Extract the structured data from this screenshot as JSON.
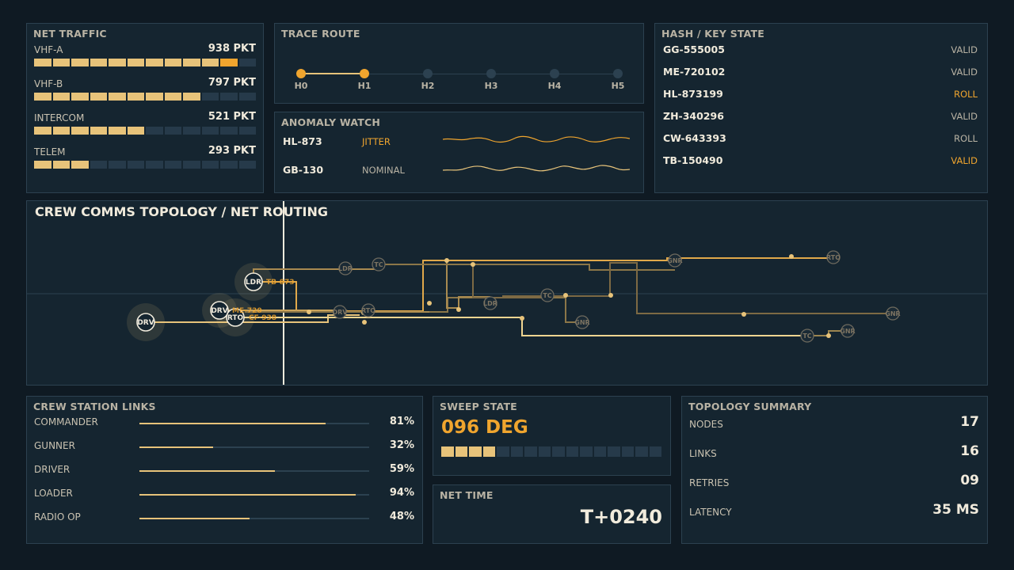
{
  "net_traffic": {
    "title": "NET TRAFFIC",
    "rows": [
      {
        "label": "VHF-A",
        "value": "938 PKT",
        "filled": 11,
        "highlight": 10
      },
      {
        "label": "VHF-B",
        "value": "797 PKT",
        "filled": 9,
        "highlight": -1
      },
      {
        "label": "INTERCOM",
        "value": "521 PKT",
        "filled": 6,
        "highlight": -1
      },
      {
        "label": "TELEM",
        "value": "293 PKT",
        "filled": 3,
        "highlight": -1
      }
    ],
    "segments": 12
  },
  "trace_route": {
    "title": "TRACE ROUTE",
    "hops": [
      "H0",
      "H1",
      "H2",
      "H3",
      "H4",
      "H5"
    ],
    "active_hops": 2
  },
  "anomaly_watch": {
    "title": "ANOMALY WATCH",
    "rows": [
      {
        "id": "HL-873",
        "status": "JITTER",
        "color": "#f0a52e"
      },
      {
        "id": "GB-130",
        "status": "NOMINAL",
        "color": "#b9b3a4"
      }
    ]
  },
  "hash_key": {
    "title": "HASH / KEY STATE",
    "rows": [
      {
        "id": "GG-555005",
        "state": "VALID",
        "color": "#b9b3a4"
      },
      {
        "id": "ME-720102",
        "state": "VALID",
        "color": "#b9b3a4"
      },
      {
        "id": "HL-873199",
        "state": "ROLL",
        "color": "#f0a52e"
      },
      {
        "id": "ZH-340296",
        "state": "VALID",
        "color": "#b9b3a4"
      },
      {
        "id": "CW-643393",
        "state": "ROLL",
        "color": "#b9b3a4"
      },
      {
        "id": "TB-150490",
        "state": "VALID",
        "color": "#f0a52e"
      }
    ]
  },
  "topology": {
    "title": "CREW COMMS TOPOLOGY / NET ROUTING",
    "primary_nodes": [
      {
        "name": "DRV",
        "tag": ""
      },
      {
        "name": "DRV",
        "tag": "ME-720"
      },
      {
        "name": "RTO",
        "tag": "CF-938"
      },
      {
        "name": "LDR",
        "tag": "TB-873"
      }
    ],
    "secondary_nodes": [
      "LDR",
      "TC",
      "GNR",
      "RTO",
      "DRV",
      "RTO",
      "LDR",
      "TC",
      "GNR",
      "GNR",
      "TC",
      "GNR",
      "GNR"
    ]
  },
  "crew_links": {
    "title": "CREW STATION LINKS",
    "rows": [
      {
        "label": "COMMANDER",
        "value": "81%",
        "pct": 0.81
      },
      {
        "label": "GUNNER",
        "value": "32%",
        "pct": 0.32
      },
      {
        "label": "DRIVER",
        "value": "59%",
        "pct": 0.59
      },
      {
        "label": "LOADER",
        "value": "94%",
        "pct": 0.94
      },
      {
        "label": "RADIO OP",
        "value": "48%",
        "pct": 0.48
      }
    ]
  },
  "sweep": {
    "title": "SWEEP STATE",
    "value": "096 DEG",
    "segments": 16,
    "filled": 4
  },
  "net_time": {
    "title": "NET TIME",
    "value": "T+0240"
  },
  "topology_summary": {
    "title": "TOPOLOGY SUMMARY",
    "rows": [
      {
        "label": "NODES",
        "value": "17"
      },
      {
        "label": "LINKS",
        "value": "16"
      },
      {
        "label": "RETRIES",
        "value": "09"
      },
      {
        "label": "LATENCY",
        "value": "35 MS"
      }
    ]
  },
  "colors": {
    "accent": "#f0a52e",
    "bar": "#e7c37a",
    "panel": "#152530",
    "background": "#0f1a23"
  }
}
